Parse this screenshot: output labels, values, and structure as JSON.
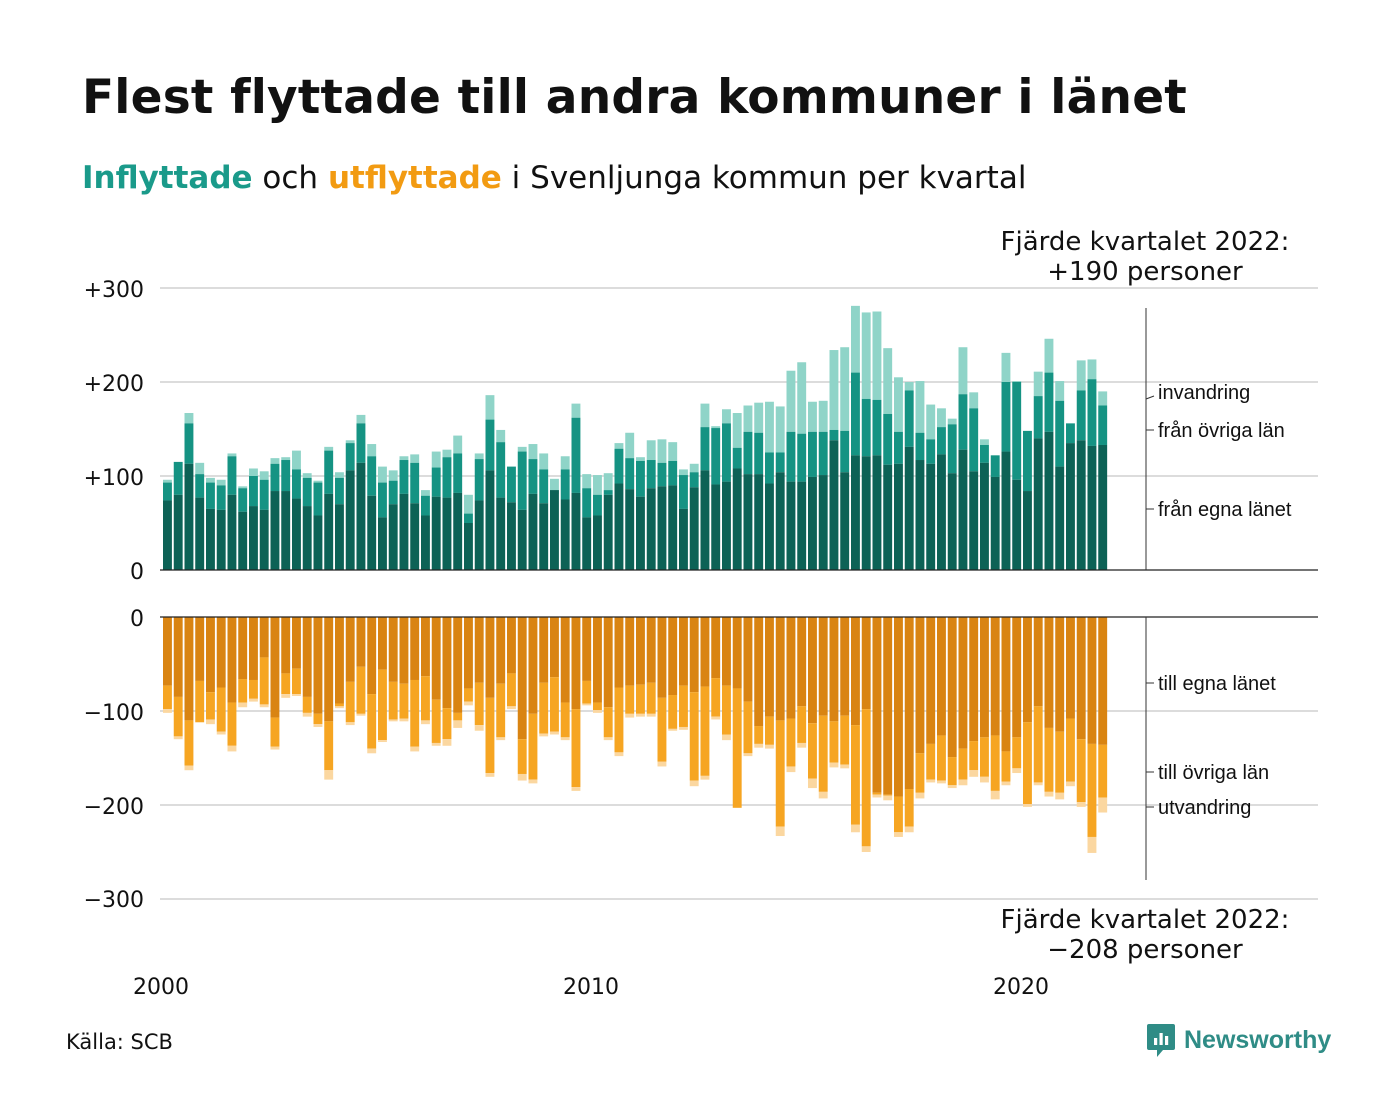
{
  "title": "Flest flyttade till andra kommuner i länet",
  "subtitle": {
    "in_word": "Inflyttade",
    "and_word": "och",
    "out_word": "utflyttade",
    "rest": "i Svenljunga kommun per kvartal"
  },
  "source": "Källa: SCB",
  "brand": "Newsworthy",
  "colors": {
    "in_own": "#0d6256",
    "in_other": "#159383",
    "in_immig": "#8fd4c8",
    "out_own": "#d98412",
    "out_other": "#f6a522",
    "out_emig": "#fbd7a0",
    "grid": "#dcdcdc",
    "brand": "#2f8c86"
  },
  "chart_data": {
    "type": "bar",
    "subtype": "stacked, diverging",
    "x_label": "",
    "y_ticks_top": [
      "0",
      "+100",
      "+200",
      "+300"
    ],
    "y_ticks_bottom": [
      "0",
      "−100",
      "−200",
      "−300"
    ],
    "x_ticks": [
      "2000",
      "2010",
      "2020"
    ],
    "first_quarter": "2000 Q1",
    "last_quarter": "2022 Q4",
    "grid": true,
    "annotation_top": {
      "line1": "Fjärde kvartalet 2022:",
      "line2": "+190 personer"
    },
    "annotation_bottom": {
      "line1": "Fjärde kvartalet 2022:",
      "line2": "−208 personer"
    },
    "series_labels_in": [
      "invandring",
      "från övriga län",
      "från egna länet"
    ],
    "series_labels_out": [
      "till egna länet",
      "till övriga län",
      "utvandring"
    ],
    "inflyttade_totals": [
      96,
      115,
      167,
      114,
      98,
      96,
      124,
      89,
      108,
      105,
      119,
      120,
      127,
      103,
      95,
      131,
      104,
      138,
      165,
      134,
      110,
      106,
      121,
      123,
      85,
      126,
      128,
      143,
      80,
      124,
      186,
      149,
      110,
      131,
      134,
      124,
      97,
      121,
      177,
      102,
      101,
      103,
      135,
      146,
      120,
      138,
      139,
      136,
      107,
      113,
      177,
      153,
      171,
      167,
      175,
      178,
      179,
      174,
      212,
      221,
      179,
      180,
      234,
      237,
      281,
      274,
      275,
      236,
      205,
      200,
      201,
      176,
      172,
      161,
      237,
      189,
      139,
      118,
      231,
      201,
      146,
      211,
      246,
      201,
      154,
      223,
      224,
      190
    ],
    "inflyttade_other_plus_own": [
      93,
      115,
      156,
      102,
      93,
      90,
      121,
      87,
      100,
      96,
      113,
      117,
      107,
      98,
      93,
      127,
      98,
      135,
      156,
      121,
      93,
      95,
      117,
      114,
      79,
      109,
      120,
      124,
      60,
      118,
      160,
      136,
      110,
      126,
      118,
      107,
      81,
      107,
      162,
      87,
      80,
      85,
      129,
      119,
      116,
      117,
      114,
      116,
      101,
      104,
      152,
      151,
      156,
      130,
      147,
      146,
      125,
      125,
      147,
      145,
      147,
      147,
      149,
      148,
      210,
      182,
      181,
      166,
      147,
      191,
      146,
      139,
      152,
      155,
      187,
      172,
      133,
      122,
      200,
      200,
      148,
      185,
      210,
      180,
      156,
      191,
      203,
      175
    ],
    "inflyttade_own": [
      74,
      80,
      113,
      77,
      65,
      64,
      80,
      62,
      68,
      64,
      84,
      84,
      76,
      68,
      58,
      81,
      70,
      106,
      114,
      79,
      56,
      70,
      81,
      71,
      58,
      78,
      77,
      82,
      50,
      74,
      106,
      77,
      72,
      64,
      81,
      71,
      85,
      75,
      82,
      56,
      58,
      80,
      92,
      86,
      78,
      87,
      89,
      90,
      65,
      88,
      106,
      91,
      94,
      108,
      102,
      102,
      92,
      104,
      94,
      94,
      99,
      101,
      138,
      104,
      122,
      121,
      122,
      112,
      113,
      131,
      117,
      113,
      123,
      103,
      128,
      105,
      114,
      99,
      126,
      96,
      84,
      140,
      147,
      110,
      135,
      138,
      132,
      133
    ],
    "utflyttade_totals": [
      102,
      130,
      163,
      112,
      114,
      125,
      143,
      96,
      90,
      96,
      141,
      86,
      84,
      106,
      117,
      173,
      97,
      115,
      105,
      145,
      133,
      111,
      111,
      143,
      114,
      137,
      137,
      118,
      94,
      121,
      170,
      131,
      98,
      174,
      177,
      127,
      125,
      131,
      185,
      94,
      102,
      131,
      148,
      107,
      106,
      106,
      159,
      121,
      120,
      180,
      173,
      109,
      131,
      203,
      148,
      139,
      140,
      233,
      165,
      139,
      182,
      193,
      160,
      161,
      229,
      250,
      192,
      195,
      234,
      229,
      193,
      176,
      177,
      182,
      179,
      170,
      176,
      194,
      179,
      166,
      202,
      179,
      191,
      194,
      180,
      202,
      251,
      208
    ],
    "utflyttade_own_plus_other": [
      98,
      127,
      158,
      112,
      109,
      122,
      137,
      91,
      87,
      93,
      138,
      82,
      82,
      102,
      114,
      163,
      95,
      112,
      103,
      140,
      131,
      109,
      108,
      138,
      110,
      134,
      130,
      110,
      90,
      115,
      166,
      128,
      95,
      167,
      173,
      124,
      122,
      128,
      181,
      92,
      99,
      128,
      144,
      103,
      103,
      103,
      154,
      119,
      117,
      174,
      169,
      106,
      125,
      203,
      145,
      135,
      136,
      223,
      159,
      134,
      172,
      186,
      155,
      157,
      221,
      244,
      189,
      190,
      229,
      223,
      187,
      173,
      174,
      179,
      173,
      163,
      170,
      185,
      175,
      161,
      199,
      176,
      186,
      187,
      175,
      197,
      234,
      192
    ],
    "utflyttade_own": [
      73,
      85,
      110,
      68,
      80,
      75,
      91,
      66,
      67,
      43,
      107,
      60,
      55,
      85,
      103,
      111,
      92,
      69,
      53,
      82,
      56,
      69,
      71,
      67,
      63,
      88,
      97,
      102,
      76,
      70,
      86,
      71,
      60,
      130,
      103,
      70,
      64,
      91,
      98,
      68,
      91,
      96,
      75,
      73,
      72,
      70,
      86,
      83,
      73,
      80,
      74,
      65,
      73,
      76,
      90,
      116,
      106,
      110,
      108,
      95,
      113,
      105,
      111,
      105,
      115,
      98,
      187,
      189,
      191,
      183,
      145,
      135,
      126,
      149,
      140,
      132,
      128,
      126,
      143,
      128,
      112,
      95,
      118,
      122,
      108,
      130,
      135,
      136
    ]
  }
}
